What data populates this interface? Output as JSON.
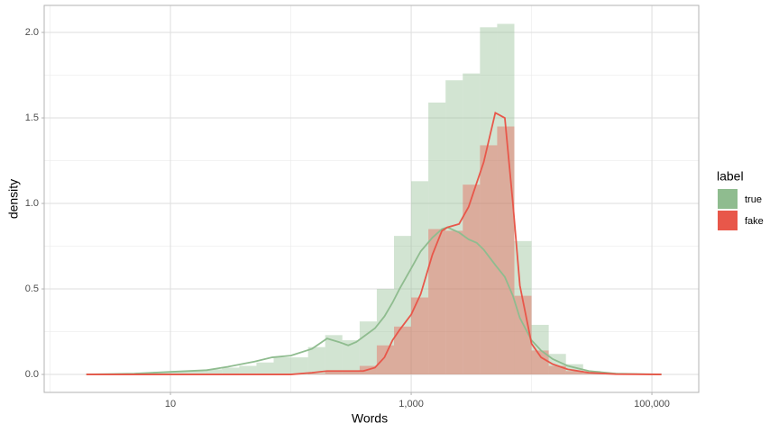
{
  "chart_data": {
    "type": "histogram",
    "xlabel": "Words",
    "ylabel": "density",
    "legend_title": "label",
    "legend_position": "right",
    "xscale": "log",
    "grid": true,
    "xlim": [
      0.893,
      245000
    ],
    "ylim": [
      -0.105,
      2.158
    ],
    "xticks": [
      10,
      {
        "value": 1000,
        "label": "1,000"
      },
      {
        "value": 100000,
        "label": "100,000"
      }
    ],
    "x_minor_breaks": [
      1,
      100,
      10000
    ],
    "yticks": [
      {
        "value": 0,
        "label": "0.0"
      },
      0.5,
      {
        "value": 1,
        "label": "1.0"
      },
      1.5,
      {
        "value": 2,
        "label": "2.0"
      }
    ],
    "y_minor_breaks": [
      0.25,
      0.75,
      1.25,
      1.75
    ],
    "bins": [
      1.39,
      1.93,
      2.68,
      3.73,
      5.18,
      7.2,
      10,
      13.9,
      19.3,
      26.8,
      37.3,
      51.8,
      72,
      100,
      139,
      193,
      268,
      373,
      518,
      720,
      1000,
      1389,
      1931,
      2683,
      3728,
      5179,
      7197,
      10000,
      13895,
      19307,
      26827,
      37276,
      51795,
      71969,
      100000,
      138950
    ],
    "series": [
      {
        "name": "true",
        "color": "#8fbc8f",
        "values": [
          0,
          0,
          0,
          0.005,
          0.01,
          0.015,
          0.02,
          0.02,
          0.03,
          0.04,
          0.05,
          0.07,
          0.1,
          0.1,
          0.16,
          0.23,
          0.2,
          0.31,
          0.5,
          0.81,
          1.13,
          1.59,
          1.72,
          1.76,
          2.03,
          2.05,
          0.78,
          0.29,
          0.12,
          0.06,
          0.02,
          0.01,
          0.005,
          0,
          0
        ],
        "density": {
          "x": [
            2,
            5,
            10,
            20,
            30,
            50,
            70,
            100,
            150,
            200,
            250,
            300,
            350,
            400,
            500,
            600,
            700,
            800,
            1000,
            1200,
            1500,
            1800,
            2000,
            2500,
            3000,
            3500,
            4000,
            5000,
            6000,
            7000,
            8000,
            10000,
            12000,
            15000,
            20000,
            30000,
            50000,
            120000
          ],
          "y": [
            0,
            0.005,
            0.015,
            0.025,
            0.045,
            0.075,
            0.1,
            0.11,
            0.15,
            0.21,
            0.19,
            0.17,
            0.19,
            0.22,
            0.27,
            0.34,
            0.42,
            0.5,
            0.62,
            0.72,
            0.8,
            0.85,
            0.86,
            0.83,
            0.79,
            0.77,
            0.73,
            0.64,
            0.57,
            0.46,
            0.33,
            0.2,
            0.14,
            0.09,
            0.05,
            0.02,
            0.005,
            0
          ]
        }
      },
      {
        "name": "fake",
        "color": "#e8574a",
        "values": [
          0,
          0,
          0,
          0,
          0,
          0,
          0,
          0,
          0,
          0,
          0,
          0,
          0,
          0,
          0.005,
          0.02,
          0.02,
          0.05,
          0.17,
          0.28,
          0.45,
          0.85,
          0.84,
          1.11,
          1.34,
          1.45,
          0.46,
          0.14,
          0.05,
          0.02,
          0.01,
          0.005,
          0,
          0,
          0
        ],
        "density": {
          "x": [
            2,
            5,
            10,
            20,
            30,
            50,
            70,
            100,
            150,
            200,
            250,
            300,
            350,
            400,
            500,
            600,
            700,
            800,
            1000,
            1200,
            1500,
            1800,
            2000,
            2500,
            3000,
            3500,
            4000,
            5000,
            6000,
            7000,
            8000,
            10000,
            12000,
            15000,
            20000,
            30000,
            50000,
            120000
          ],
          "y": [
            0,
            0,
            0,
            0,
            0,
            0,
            0,
            0,
            0.01,
            0.02,
            0.02,
            0.02,
            0.02,
            0.02,
            0.04,
            0.1,
            0.2,
            0.26,
            0.35,
            0.47,
            0.7,
            0.84,
            0.86,
            0.88,
            0.98,
            1.12,
            1.24,
            1.53,
            1.5,
            1.0,
            0.52,
            0.18,
            0.1,
            0.06,
            0.03,
            0.01,
            0.002,
            0
          ]
        }
      }
    ]
  }
}
